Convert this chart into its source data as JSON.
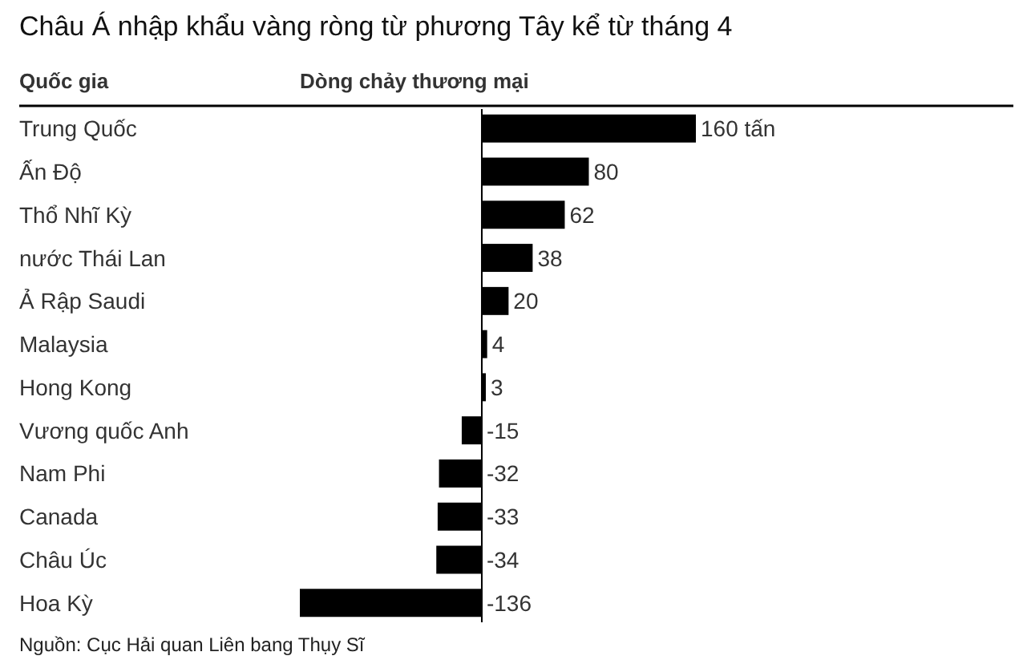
{
  "chart_data": {
    "type": "bar",
    "orientation": "horizontal",
    "title": "Châu Á nhập khẩu vàng ròng từ phương Tây kể từ tháng 4",
    "ylabel": "Quốc gia",
    "xlabel": "Dòng chảy thương mại",
    "categories": [
      "Trung Quốc",
      "Ấn Độ",
      "Thổ Nhĩ Kỳ",
      "nước Thái Lan",
      "Ả Rập Saudi",
      "Malaysia",
      "Hong Kong",
      "Vương quốc Anh",
      "Nam Phi",
      "Canada",
      "Châu Úc",
      "Hoa Kỳ"
    ],
    "values": [
      160,
      80,
      62,
      38,
      20,
      4,
      3,
      -15,
      -32,
      -33,
      -34,
      -136
    ],
    "value_labels": [
      "160 tấn",
      "80",
      "62",
      "38",
      "20",
      "4",
      "3",
      "-15",
      "-32",
      "-33",
      "-34",
      "-136"
    ],
    "color": "#000000",
    "annotations": [
      "Nguồn: Cục Hải quan Liên bang Thụy Sĩ"
    ]
  }
}
